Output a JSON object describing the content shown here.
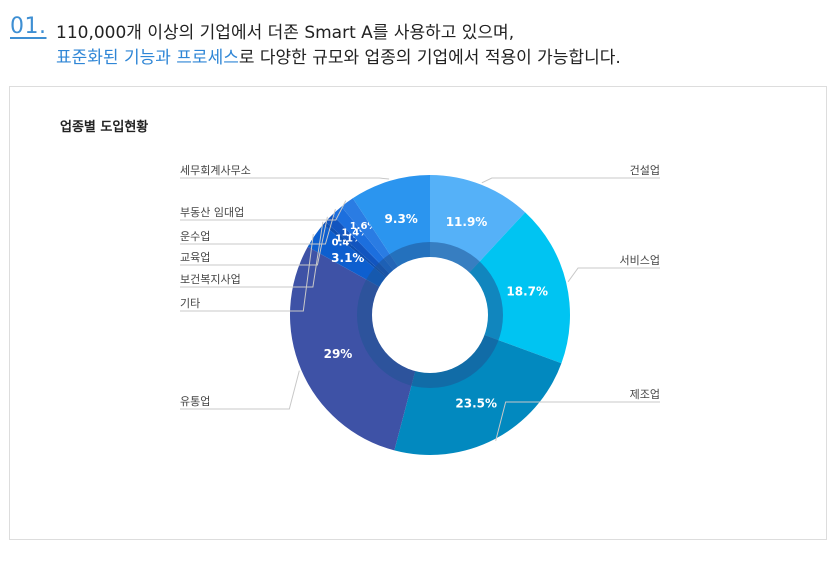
{
  "header": {
    "number": "01.",
    "line1": "110,000개 이상의 기업에서 더존 Smart A를 사용하고 있으며,",
    "line2_highlight": "표준화된 기능과 프로세스",
    "line2_rest": "로 다양한 규모와 업종의 기업에서 적용이 가능합니다."
  },
  "chart_data": {
    "type": "pie",
    "title": "업종별 도입현황",
    "series": [
      {
        "name": "건설업",
        "value": 11.9,
        "label": "11.9%",
        "color": "#55b1f8"
      },
      {
        "name": "서비스업",
        "value": 18.7,
        "label": "18.7%",
        "color": "#00c4f2"
      },
      {
        "name": "제조업",
        "value": 23.5,
        "label": "23.5%",
        "color": "#0289bf"
      },
      {
        "name": "유통업",
        "value": 29,
        "label": "29%",
        "color": "#3e52a6"
      },
      {
        "name": "기타",
        "value": 3.1,
        "label": "3.1%",
        "color": "#0d5fcf"
      },
      {
        "name": "보건복지사업",
        "value": 0.4,
        "label": "0.4%",
        "color": "#0e4fb0"
      },
      {
        "name": "교육업",
        "value": 1.1,
        "label": "1.1%",
        "color": "#1255bf"
      },
      {
        "name": "운수업",
        "value": 1.4,
        "label": "1.4%",
        "color": "#1c6fde"
      },
      {
        "name": "부동산 임대업",
        "value": 1.6,
        "label": "1.6%",
        "color": "#2a7ce3"
      },
      {
        "name": "세무회계사무소",
        "value": 9.3,
        "label": "9.3%",
        "color": "#2b95ef"
      }
    ]
  }
}
